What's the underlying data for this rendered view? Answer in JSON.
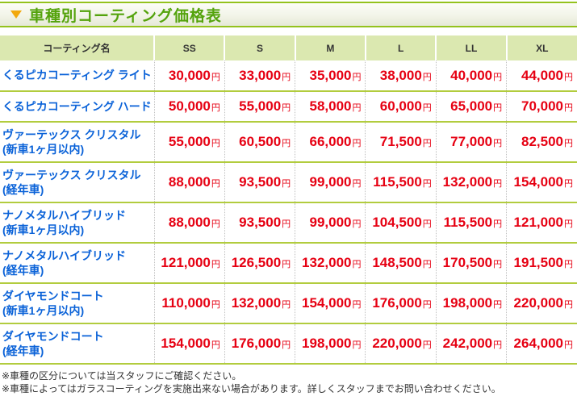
{
  "page_title": "車種別コーティング価格表",
  "title_icon": "triangle-down-icon",
  "colors": {
    "title_green": "#54a30c",
    "bar_border_green": "#94c21d",
    "header_cell_green": "#dbe8b0",
    "row_line_green": "#b2cc3e",
    "name_blue": "#0a62d8",
    "price_red": "#e60012",
    "triangle_orange": "#f2a90d"
  },
  "table": {
    "name_header": "コーティング名",
    "size_headers": [
      "SS",
      "S",
      "M",
      "L",
      "LL",
      "XL"
    ],
    "yen_suffix": "円",
    "rows": [
      {
        "name": "くるピカコーティング ライト",
        "sub": "",
        "prices": [
          "30,000",
          "33,000",
          "35,000",
          "38,000",
          "40,000",
          "44,000"
        ]
      },
      {
        "name": "くるピカコーティング ハード",
        "sub": "",
        "prices": [
          "50,000",
          "55,000",
          "58,000",
          "60,000",
          "65,000",
          "70,000"
        ]
      },
      {
        "name": "ヴァーテックス クリスタル",
        "sub": "(新車1ヶ月以内)",
        "prices": [
          "55,000",
          "60,500",
          "66,000",
          "71,500",
          "77,000",
          "82,500"
        ]
      },
      {
        "name": "ヴァーテックス クリスタル",
        "sub": "(経年車)",
        "prices": [
          "88,000",
          "93,500",
          "99,000",
          "115,500",
          "132,000",
          "154,000"
        ]
      },
      {
        "name": "ナノメタルハイブリッド",
        "sub": "(新車1ヶ月以内)",
        "prices": [
          "88,000",
          "93,500",
          "99,000",
          "104,500",
          "115,500",
          "121,000"
        ]
      },
      {
        "name": "ナノメタルハイブリッド",
        "sub": "(経年車)",
        "prices": [
          "121,000",
          "126,500",
          "132,000",
          "148,500",
          "170,500",
          "191,500"
        ]
      },
      {
        "name": "ダイヤモンドコート",
        "sub": "(新車1ヶ月以内)",
        "prices": [
          "110,000",
          "132,000",
          "154,000",
          "176,000",
          "198,000",
          "220,000"
        ]
      },
      {
        "name": "ダイヤモンドコート",
        "sub": "(経年車)",
        "prices": [
          "154,000",
          "176,000",
          "198,000",
          "220,000",
          "242,000",
          "264,000"
        ]
      }
    ]
  },
  "notes": [
    "※車種の区分については当スタッフにご確認ください。",
    "※車種によってはガラスコーティングを実施出来ない場合があります。詳しくスタッフまでお問い合わせください。"
  ]
}
